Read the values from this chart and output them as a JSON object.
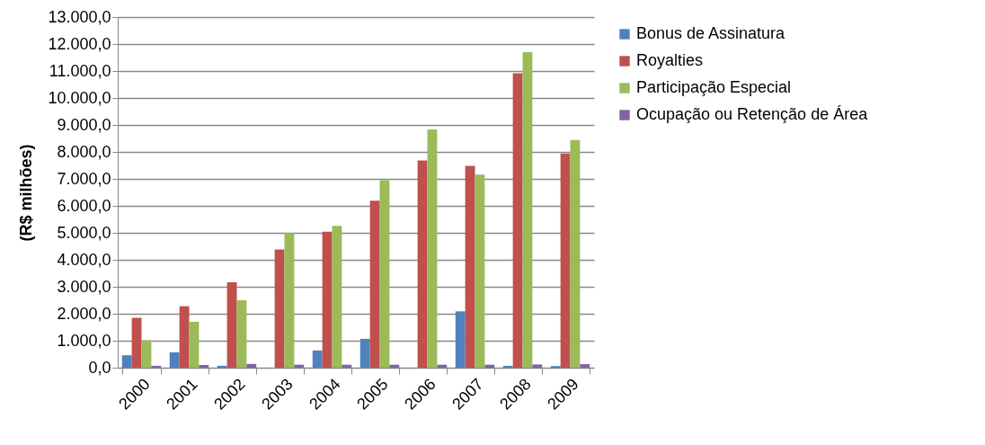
{
  "chart_data": {
    "type": "bar",
    "ylabel": "(R$ milhões)",
    "categories": [
      "2000",
      "2001",
      "2002",
      "2003",
      "2004",
      "2005",
      "2006",
      "2007",
      "2008",
      "2009"
    ],
    "series": [
      {
        "name": "Bonus de Assinatura",
        "color": "#4f81bd",
        "values": [
          460,
          570,
          70,
          0,
          640,
          1070,
          0,
          2090,
          70,
          60
        ]
      },
      {
        "name": "Royalties",
        "color": "#c0504d",
        "values": [
          1850,
          2280,
          3170,
          4380,
          5040,
          6190,
          7680,
          7480,
          10920,
          7940
        ]
      },
      {
        "name": "Participação Especial",
        "color": "#9bbb59",
        "values": [
          1020,
          1700,
          2500,
          4990,
          5260,
          6950,
          8830,
          7160,
          11700,
          8440
        ]
      },
      {
        "name": "Ocupação ou Retenção de Área",
        "color": "#8064a2",
        "values": [
          70,
          100,
          140,
          110,
          110,
          110,
          110,
          110,
          120,
          130
        ]
      }
    ],
    "ylim": [
      0,
      13000
    ],
    "yticks": [
      {
        "value": 0,
        "label": "0,0"
      },
      {
        "value": 1000,
        "label": "1.000,0"
      },
      {
        "value": 2000,
        "label": "2.000,0"
      },
      {
        "value": 3000,
        "label": "3.000,0"
      },
      {
        "value": 4000,
        "label": "4.000,0"
      },
      {
        "value": 5000,
        "label": "5.000,0"
      },
      {
        "value": 6000,
        "label": "6.000,0"
      },
      {
        "value": 7000,
        "label": "7.000,0"
      },
      {
        "value": 8000,
        "label": "8.000,0"
      },
      {
        "value": 9000,
        "label": "9.000,0"
      },
      {
        "value": 10000,
        "label": "10.000,0"
      },
      {
        "value": 11000,
        "label": "11.000,0"
      },
      {
        "value": 12000,
        "label": "12.000,0"
      },
      {
        "value": 13000,
        "label": "13.000,0"
      }
    ],
    "grid": "y",
    "legend": "right"
  }
}
